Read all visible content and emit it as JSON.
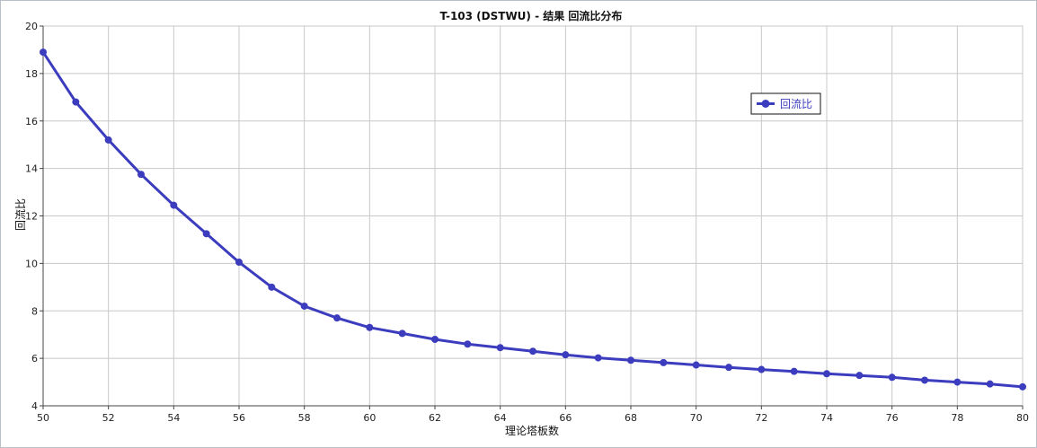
{
  "chart_data": {
    "type": "line",
    "title": "T-103 (DSTWU) - 结果 回流比分布",
    "xlabel": "理论塔板数",
    "ylabel": "回流比",
    "xlim": [
      50,
      80
    ],
    "ylim": [
      4,
      20
    ],
    "xticks": [
      "50",
      "52",
      "54",
      "56",
      "58",
      "60",
      "62",
      "64",
      "66",
      "68",
      "70",
      "72",
      "74",
      "76",
      "78",
      "80"
    ],
    "yticks": [
      "4",
      "6",
      "8",
      "10",
      "12",
      "14",
      "16",
      "18",
      "20"
    ],
    "grid": true,
    "legend_position": "top-right",
    "series": [
      {
        "name": "回流比",
        "color": "#3c3cbe",
        "x": [
          50,
          51,
          52,
          53,
          54,
          55,
          56,
          57,
          58,
          59,
          60,
          61,
          62,
          63,
          64,
          65,
          66,
          67,
          68,
          69,
          70,
          71,
          72,
          73,
          74,
          75,
          76,
          77,
          78,
          79,
          80
        ],
        "y": [
          18.9,
          16.8,
          15.2,
          13.75,
          12.45,
          11.25,
          10.05,
          9.0,
          8.2,
          7.7,
          7.3,
          7.05,
          6.8,
          6.6,
          6.45,
          6.3,
          6.15,
          6.02,
          5.92,
          5.82,
          5.72,
          5.62,
          5.53,
          5.45,
          5.35,
          5.28,
          5.2,
          5.08,
          5.0,
          4.92,
          4.8
        ]
      }
    ]
  }
}
